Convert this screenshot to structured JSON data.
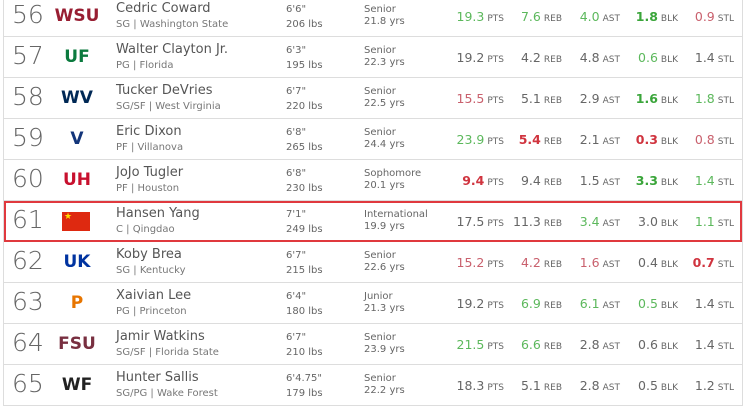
{
  "units": [
    "PTS",
    "REB",
    "AST",
    "BLK",
    "STL"
  ],
  "highlight_color": "#e0393e",
  "players": [
    {
      "rank": "56",
      "logo": "washington-state-logo",
      "logo_text": "WSU",
      "logo_color": "#981e32",
      "name": "Cedric Coward",
      "pos_school": "SG | Washington State",
      "height": "6'6\"",
      "weight": "206 lbs",
      "class": "Senior",
      "age": "21.8 yrs",
      "stats": [
        {
          "v": "19.3",
          "c": "good"
        },
        {
          "v": "7.6",
          "c": "good"
        },
        {
          "v": "4.0",
          "c": "good"
        },
        {
          "v": "1.8",
          "c": "good-strong"
        },
        {
          "v": "0.9",
          "c": "bad"
        }
      ]
    },
    {
      "rank": "57",
      "logo": "florida-logo",
      "logo_text": "UF",
      "logo_color": "#0b7a3e",
      "name": "Walter Clayton Jr.",
      "pos_school": "PG | Florida",
      "height": "6'3\"",
      "weight": "195 lbs",
      "class": "Senior",
      "age": "22.3 yrs",
      "stats": [
        {
          "v": "19.2",
          "c": "neutral"
        },
        {
          "v": "4.2",
          "c": "neutral"
        },
        {
          "v": "4.8",
          "c": "neutral"
        },
        {
          "v": "0.6",
          "c": "good"
        },
        {
          "v": "1.4",
          "c": "neutral"
        }
      ]
    },
    {
      "rank": "58",
      "logo": "west-virginia-logo",
      "logo_text": "WV",
      "logo_color": "#002855",
      "name": "Tucker DeVries",
      "pos_school": "SG/SF | West Virginia",
      "height": "6'7\"",
      "weight": "220 lbs",
      "class": "Senior",
      "age": "22.5 yrs",
      "stats": [
        {
          "v": "15.5",
          "c": "bad"
        },
        {
          "v": "5.1",
          "c": "neutral"
        },
        {
          "v": "2.9",
          "c": "neutral"
        },
        {
          "v": "1.6",
          "c": "good-strong"
        },
        {
          "v": "1.8",
          "c": "good"
        }
      ]
    },
    {
      "rank": "59",
      "logo": "villanova-logo",
      "logo_text": "V",
      "logo_color": "#13357a",
      "name": "Eric Dixon",
      "pos_school": "PF | Villanova",
      "height": "6'8\"",
      "weight": "265 lbs",
      "class": "Senior",
      "age": "24.4 yrs",
      "stats": [
        {
          "v": "23.9",
          "c": "good"
        },
        {
          "v": "5.4",
          "c": "bad-strong"
        },
        {
          "v": "2.1",
          "c": "neutral"
        },
        {
          "v": "0.3",
          "c": "bad-strong"
        },
        {
          "v": "0.8",
          "c": "bad"
        }
      ]
    },
    {
      "rank": "60",
      "logo": "houston-logo",
      "logo_text": "UH",
      "logo_color": "#c8102e",
      "name": "JoJo Tugler",
      "pos_school": "PF | Houston",
      "height": "6'8\"",
      "weight": "230 lbs",
      "class": "Sophomore",
      "age": "20.1 yrs",
      "stats": [
        {
          "v": "9.4",
          "c": "bad-strong"
        },
        {
          "v": "9.4",
          "c": "neutral"
        },
        {
          "v": "1.5",
          "c": "neutral"
        },
        {
          "v": "3.3",
          "c": "good-strong"
        },
        {
          "v": "1.4",
          "c": "good"
        }
      ]
    },
    {
      "rank": "61",
      "logo": "china-flag",
      "logo_text": "★",
      "logo_color": "#de2910",
      "name": "Hansen Yang",
      "pos_school": "C | Qingdao",
      "height": "7'1\"",
      "weight": "249 lbs",
      "class": "International",
      "age": "19.9 yrs",
      "highlight": true,
      "stats": [
        {
          "v": "17.5",
          "c": "neutral"
        },
        {
          "v": "11.3",
          "c": "neutral"
        },
        {
          "v": "3.4",
          "c": "good"
        },
        {
          "v": "3.0",
          "c": "neutral"
        },
        {
          "v": "1.1",
          "c": "good"
        }
      ]
    },
    {
      "rank": "62",
      "logo": "kentucky-logo",
      "logo_text": "UK",
      "logo_color": "#0033a0",
      "name": "Koby Brea",
      "pos_school": "SG | Kentucky",
      "height": "6'7\"",
      "weight": "215 lbs",
      "class": "Senior",
      "age": "22.6 yrs",
      "stats": [
        {
          "v": "15.2",
          "c": "bad"
        },
        {
          "v": "4.2",
          "c": "bad"
        },
        {
          "v": "1.6",
          "c": "bad"
        },
        {
          "v": "0.4",
          "c": "neutral"
        },
        {
          "v": "0.7",
          "c": "bad-strong"
        }
      ]
    },
    {
      "rank": "63",
      "logo": "princeton-logo",
      "logo_text": "P",
      "logo_color": "#e77500",
      "name": "Xaivian Lee",
      "pos_school": "PG | Princeton",
      "height": "6'4\"",
      "weight": "180 lbs",
      "class": "Junior",
      "age": "21.3 yrs",
      "stats": [
        {
          "v": "19.2",
          "c": "neutral"
        },
        {
          "v": "6.9",
          "c": "good"
        },
        {
          "v": "6.1",
          "c": "good"
        },
        {
          "v": "0.5",
          "c": "good"
        },
        {
          "v": "1.4",
          "c": "neutral"
        }
      ]
    },
    {
      "rank": "64",
      "logo": "florida-state-logo",
      "logo_text": "FSU",
      "logo_color": "#782f40",
      "name": "Jamir Watkins",
      "pos_school": "SG/SF | Florida State",
      "height": "6'7\"",
      "weight": "210 lbs",
      "class": "Senior",
      "age": "23.9 yrs",
      "stats": [
        {
          "v": "21.5",
          "c": "good"
        },
        {
          "v": "6.6",
          "c": "good"
        },
        {
          "v": "2.8",
          "c": "neutral"
        },
        {
          "v": "0.6",
          "c": "neutral"
        },
        {
          "v": "1.4",
          "c": "neutral"
        }
      ]
    },
    {
      "rank": "65",
      "logo": "wake-forest-logo",
      "logo_text": "WF",
      "logo_color": "#222222",
      "name": "Hunter Sallis",
      "pos_school": "SG/PG | Wake Forest",
      "height": "6'4.75\"",
      "weight": "179 lbs",
      "class": "Senior",
      "age": "22.2 yrs",
      "stats": [
        {
          "v": "18.3",
          "c": "neutral"
        },
        {
          "v": "5.1",
          "c": "neutral"
        },
        {
          "v": "2.8",
          "c": "neutral"
        },
        {
          "v": "0.5",
          "c": "neutral"
        },
        {
          "v": "1.2",
          "c": "neutral"
        }
      ]
    }
  ]
}
